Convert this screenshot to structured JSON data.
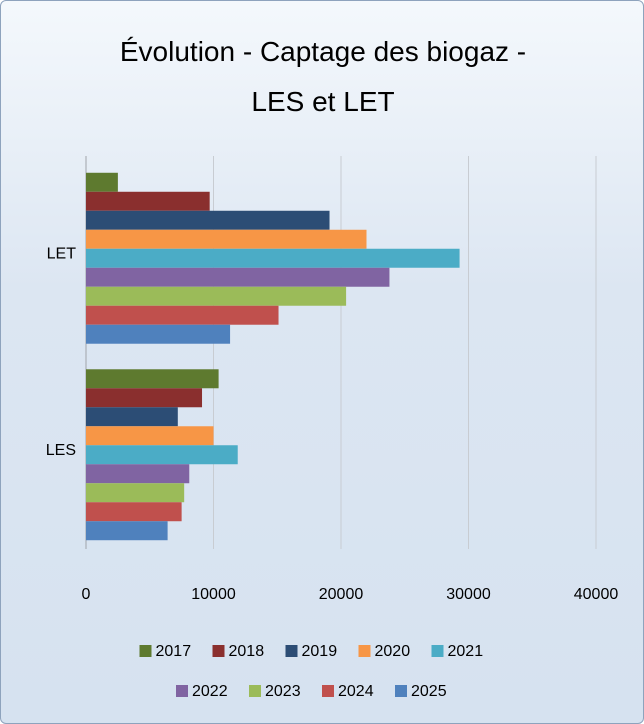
{
  "chart_data": {
    "type": "barh",
    "title": "Évolution - Captage des biogaz - LES et LET",
    "categories": [
      "LES",
      "LET"
    ],
    "series": [
      {
        "name": "2017",
        "color": "#5e7a2f",
        "values": [
          10400,
          2500
        ]
      },
      {
        "name": "2018",
        "color": "#8a2f2e",
        "values": [
          9100,
          9700
        ]
      },
      {
        "name": "2019",
        "color": "#2c4d75",
        "values": [
          7200,
          19100
        ]
      },
      {
        "name": "2020",
        "color": "#f79646",
        "values": [
          10000,
          22000
        ]
      },
      {
        "name": "2021",
        "color": "#4bacc6",
        "values": [
          11900,
          29300
        ]
      },
      {
        "name": "2022",
        "color": "#8064a2",
        "values": [
          8100,
          23800
        ]
      },
      {
        "name": "2023",
        "color": "#9bbb59",
        "values": [
          7700,
          20400
        ]
      },
      {
        "name": "2024",
        "color": "#c0504d",
        "values": [
          7500,
          15100
        ]
      },
      {
        "name": "2025",
        "color": "#4f81bd",
        "values": [
          6400,
          11300
        ]
      }
    ],
    "xlim": [
      0,
      40000
    ],
    "xticks": [
      0,
      10000,
      20000,
      30000,
      40000
    ],
    "grid": true,
    "legend": "bottom"
  }
}
